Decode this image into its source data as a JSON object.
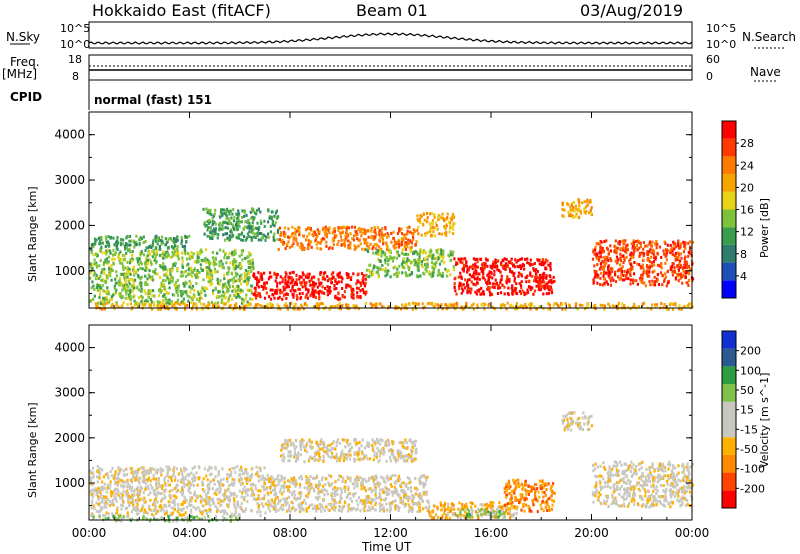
{
  "header": {
    "radar": "Hokkaido East (fitACF)",
    "beam": "Beam 01",
    "date": "03/Aug/2019"
  },
  "side": {
    "nsky_label": "N.Sky",
    "freq_label": "Freq.",
    "freq_unit": "[MHz]",
    "cpid_label": "CPID",
    "nsearch_label": "N.Search",
    "nave_label": "Nave",
    "nsky_ticks": [
      "10^5",
      "10^0"
    ],
    "nsearch_ticks": [
      "10^5",
      "10^0"
    ],
    "freq_ticks": [
      "18",
      "8"
    ],
    "nave_ticks": [
      "60",
      "0"
    ]
  },
  "cpid": {
    "text": "normal (fast) 151"
  },
  "colors": {
    "power": [
      "#0000ff",
      "#1f4fb4",
      "#2e7d6e",
      "#3a9d4e",
      "#7cc23a",
      "#e8d21a",
      "#f5a400",
      "#ff7a00",
      "#ff3a00",
      "#ff0000"
    ],
    "velocity": [
      "#ff0000",
      "#ff4400",
      "#ff8a00",
      "#ffb000",
      "#c8c8c0",
      "#c8c8c0",
      "#7fc24a",
      "#2e9d40",
      "#2a5a8f",
      "#1030d0"
    ]
  },
  "chart_data": [
    {
      "type": "heatmap",
      "title": "",
      "xlabel": "",
      "ylabel": "Slant Range [km]",
      "colorbar_label": "Power [dB]",
      "colorbar_ticks": [
        "4",
        "8",
        "12",
        "16",
        "20",
        "24",
        "28"
      ],
      "ylim": [
        180,
        4500
      ],
      "yticks": [
        "1000",
        "2000",
        "3000",
        "4000"
      ],
      "x_ticks": [
        "00:00",
        "04:00",
        "08:00",
        "12:00",
        "16:00",
        "20:00",
        "00:00"
      ],
      "xlim_hours": [
        0,
        24
      ],
      "regions": [
        {
          "t0": 0.0,
          "t1": 6.5,
          "r0": 300,
          "r1": 1500,
          "level": 4
        },
        {
          "t0": 0.0,
          "t1": 4.0,
          "r0": 1500,
          "r1": 1800,
          "level": 3
        },
        {
          "t0": 4.5,
          "t1": 7.5,
          "r0": 1700,
          "r1": 2400,
          "level": 3
        },
        {
          "t0": 6.5,
          "t1": 11.0,
          "r0": 400,
          "r1": 1000,
          "level": 9
        },
        {
          "t0": 7.5,
          "t1": 13.0,
          "r0": 1500,
          "r1": 2000,
          "level": 7
        },
        {
          "t0": 11.0,
          "t1": 14.5,
          "r0": 900,
          "r1": 1500,
          "level": 4
        },
        {
          "t0": 13.0,
          "t1": 14.5,
          "r0": 1800,
          "r1": 2300,
          "level": 6
        },
        {
          "t0": 14.5,
          "t1": 18.5,
          "r0": 500,
          "r1": 1300,
          "level": 9
        },
        {
          "t0": 18.8,
          "t1": 20.0,
          "r0": 2200,
          "r1": 2600,
          "level": 6
        },
        {
          "t0": 20.0,
          "t1": 24.0,
          "r0": 700,
          "r1": 1700,
          "level": 8
        },
        {
          "t0": 0.0,
          "t1": 24.0,
          "r0": 180,
          "r1": 320,
          "level": 6
        }
      ]
    },
    {
      "type": "heatmap",
      "title": "",
      "xlabel": "Time UT",
      "ylabel": "Slant Range [km]",
      "colorbar_label": "Velocity [m s^-1]",
      "colorbar_ticks": [
        "-200",
        "-100",
        "-50",
        "-15",
        "15",
        "50",
        "100",
        "200"
      ],
      "ylim": [
        180,
        4500
      ],
      "yticks": [
        "1000",
        "2000",
        "3000",
        "4000"
      ],
      "x_ticks": [
        "00:00",
        "04:00",
        "08:00",
        "12:00",
        "16:00",
        "20:00",
        "00:00"
      ],
      "xlim_hours": [
        0,
        24
      ],
      "regions": [
        {
          "t0": 0.0,
          "t1": 7.0,
          "r0": 300,
          "r1": 1400,
          "level": 4
        },
        {
          "t0": 7.0,
          "t1": 13.5,
          "r0": 400,
          "r1": 1200,
          "level": 4
        },
        {
          "t0": 7.5,
          "t1": 13.0,
          "r0": 1500,
          "r1": 2000,
          "level": 4
        },
        {
          "t0": 13.5,
          "t1": 17.0,
          "r0": 250,
          "r1": 600,
          "level": 3
        },
        {
          "t0": 16.5,
          "t1": 18.5,
          "r0": 400,
          "r1": 1100,
          "level": 2
        },
        {
          "t0": 14.5,
          "t1": 16.5,
          "r0": 250,
          "r1": 450,
          "level": 6
        },
        {
          "t0": 18.8,
          "t1": 20.0,
          "r0": 2200,
          "r1": 2600,
          "level": 4
        },
        {
          "t0": 20.0,
          "t1": 24.0,
          "r0": 500,
          "r1": 1500,
          "level": 4
        },
        {
          "t0": 0.0,
          "t1": 6.0,
          "r0": 180,
          "r1": 300,
          "level": 6
        }
      ]
    }
  ]
}
